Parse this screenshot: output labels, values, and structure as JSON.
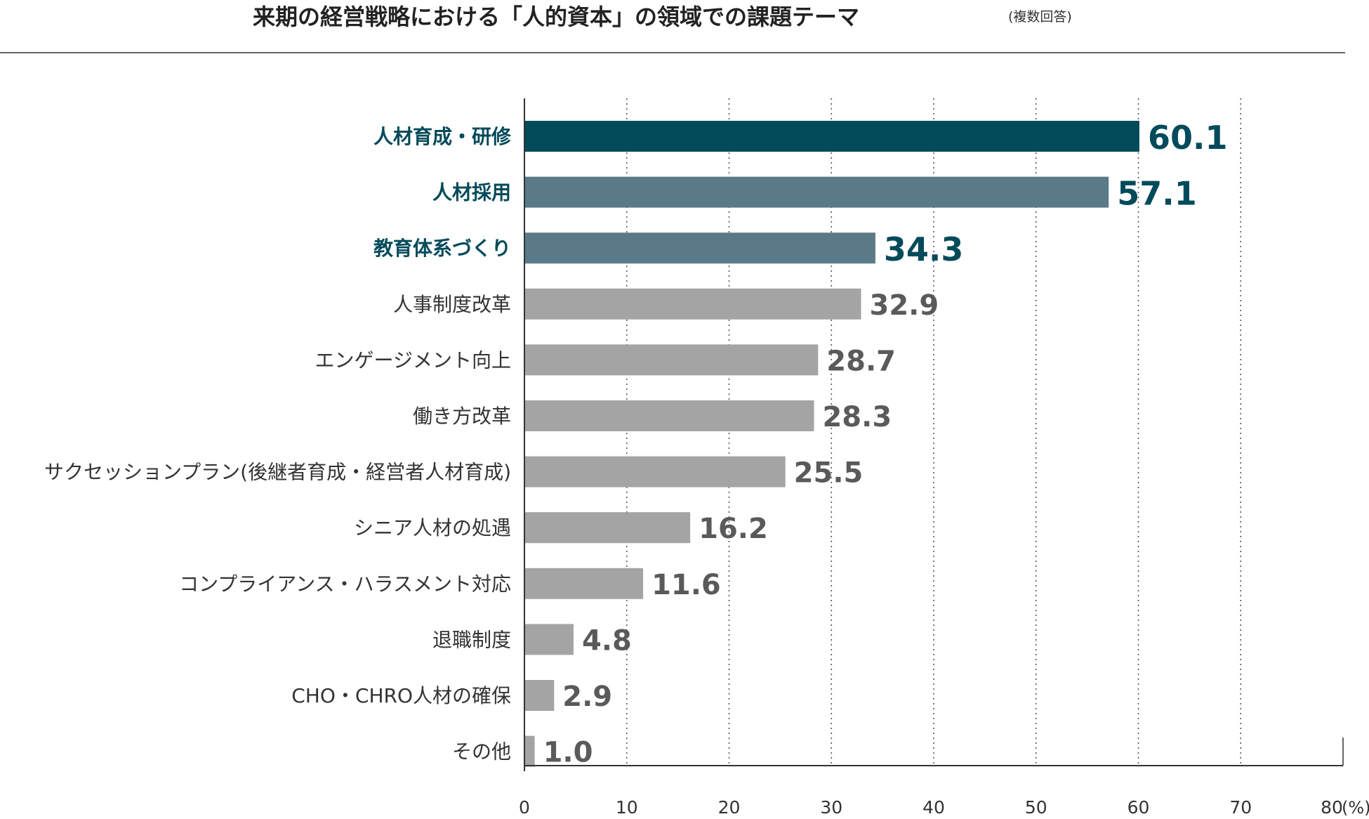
{
  "title": "来期の経営戦略における「人的資本」の領域での課題テーマ",
  "subtitle": "(複数回答)",
  "colors": {
    "top1": "#034a5a",
    "top23": "#5b7a88",
    "rest": "#a4a4a4",
    "highlight_label": "#034a5a",
    "normal_label": "#333333",
    "rest_value": "#5a5a5a",
    "axis": "#333333",
    "grid": "#555555"
  },
  "chart_data": {
    "type": "bar",
    "orientation": "horizontal",
    "categories": [
      "人材育成・研修",
      "人材採用",
      "教育体系づくり",
      "人事制度改革",
      "エンゲージメント向上",
      "働き方改革",
      "サクセッションプラン(後継者育成・経営者人材育成)",
      "シニア人材の処遇",
      "コンプライアンス・ハラスメント対応",
      "退職制度",
      "CHO・CHRO人材の確保",
      "その他"
    ],
    "values": [
      60.1,
      57.1,
      34.3,
      32.9,
      28.7,
      28.3,
      25.5,
      16.2,
      11.6,
      4.8,
      2.9,
      1.0
    ],
    "value_labels": [
      "60.1",
      "57.1",
      "34.3",
      "32.9",
      "28.7",
      "28.3",
      "25.5",
      "16.2",
      "11.6",
      "4.8",
      "2.9",
      "1.0"
    ],
    "highlight": [
      "top1",
      "top23",
      "top23",
      "rest",
      "rest",
      "rest",
      "rest",
      "rest",
      "rest",
      "rest",
      "rest",
      "rest"
    ],
    "xlim": [
      0,
      80
    ],
    "xticks": [
      0,
      10,
      20,
      30,
      40,
      50,
      60,
      70,
      80
    ],
    "xtick_labels": [
      "0",
      "10",
      "20",
      "30",
      "40",
      "50",
      "60",
      "70",
      "80"
    ],
    "unit_label": "(%)",
    "grid": "vertical dotted",
    "legend": "none"
  }
}
